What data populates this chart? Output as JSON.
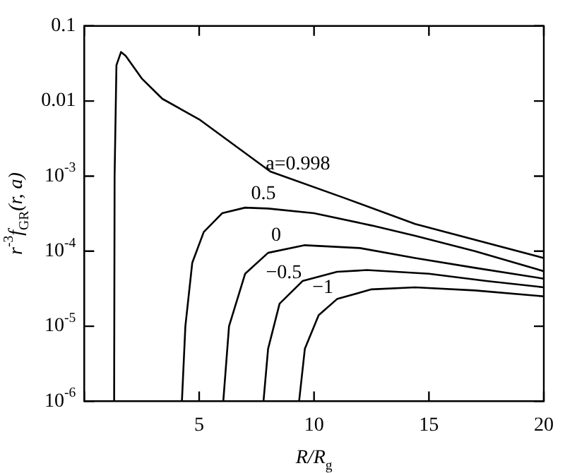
{
  "chart_data": {
    "type": "line",
    "xlabel": "R/R$_{g}$",
    "ylabel": "r$^{-3}$f$_{GR}$(r, a)",
    "log": "y",
    "grid": false,
    "legend": false,
    "marker": "none",
    "line_style": "solid",
    "xlim": [
      0,
      20
    ],
    "xticks": [
      {
        "value": 0,
        "label": null
      },
      5,
      10,
      15,
      20
    ],
    "ylim": [
      1e-06,
      0.1
    ],
    "yticks": [
      {
        "value": 1e-06,
        "label": "10$^{-6}$"
      },
      {
        "value": 1e-05,
        "label": "10$^{-5}$"
      },
      {
        "value": 0.0001,
        "label": "10$^{-4}$"
      },
      {
        "value": 0.001,
        "label": "10$^{-3}$"
      },
      {
        "value": 0.01,
        "label": "0.01"
      },
      {
        "value": 0.1,
        "label": "0.1"
      }
    ],
    "series": [
      {
        "name": "a=0.998",
        "color": "#000000",
        "x": [
          1.3,
          1.32,
          1.4,
          1.6,
          1.8,
          2.5,
          3.4,
          5,
          8.1,
          11.25,
          14.4,
          20
        ],
        "values": [
          1e-06,
          0.001,
          0.03,
          0.045,
          0.04,
          0.02,
          0.0107,
          0.0057,
          0.00115,
          0.00052,
          0.00023,
          8.1e-05
        ]
      },
      {
        "name": "0.5",
        "color": "#000000",
        "x": [
          4.25,
          4.4,
          4.7,
          5.2,
          6,
          7,
          8,
          10,
          12.5,
          14.4,
          17,
          20
        ],
        "values": [
          1e-06,
          1e-05,
          7e-05,
          0.00018,
          0.00032,
          0.00038,
          0.00037,
          0.00032,
          0.00022,
          0.00016,
          0.0001,
          5.4e-05
        ]
      },
      {
        "name": "0",
        "color": "#000000",
        "x": [
          6.05,
          6.3,
          7,
          8,
          9.6,
          12,
          14.4,
          17,
          20
        ],
        "values": [
          1e-06,
          1e-05,
          5e-05,
          9.5e-05,
          0.00012,
          0.00011,
          8.1e-05,
          6e-05,
          4.3e-05
        ]
      },
      {
        "name": "−0.5",
        "color": "#000000",
        "x": [
          7.8,
          8,
          8.5,
          9.5,
          11,
          12.3,
          15,
          17.5,
          20
        ],
        "values": [
          1e-06,
          5e-06,
          2e-05,
          4e-05,
          5.3e-05,
          5.6e-05,
          5e-05,
          4e-05,
          3.3e-05
        ]
      },
      {
        "name": "−1",
        "color": "#000000",
        "x": [
          9.35,
          9.6,
          10.2,
          11,
          12.5,
          14.4,
          17,
          20
        ],
        "values": [
          1e-06,
          5e-06,
          1.4e-05,
          2.3e-05,
          3.1e-05,
          3.3e-05,
          3e-05,
          2.5e-05
        ]
      }
    ]
  }
}
